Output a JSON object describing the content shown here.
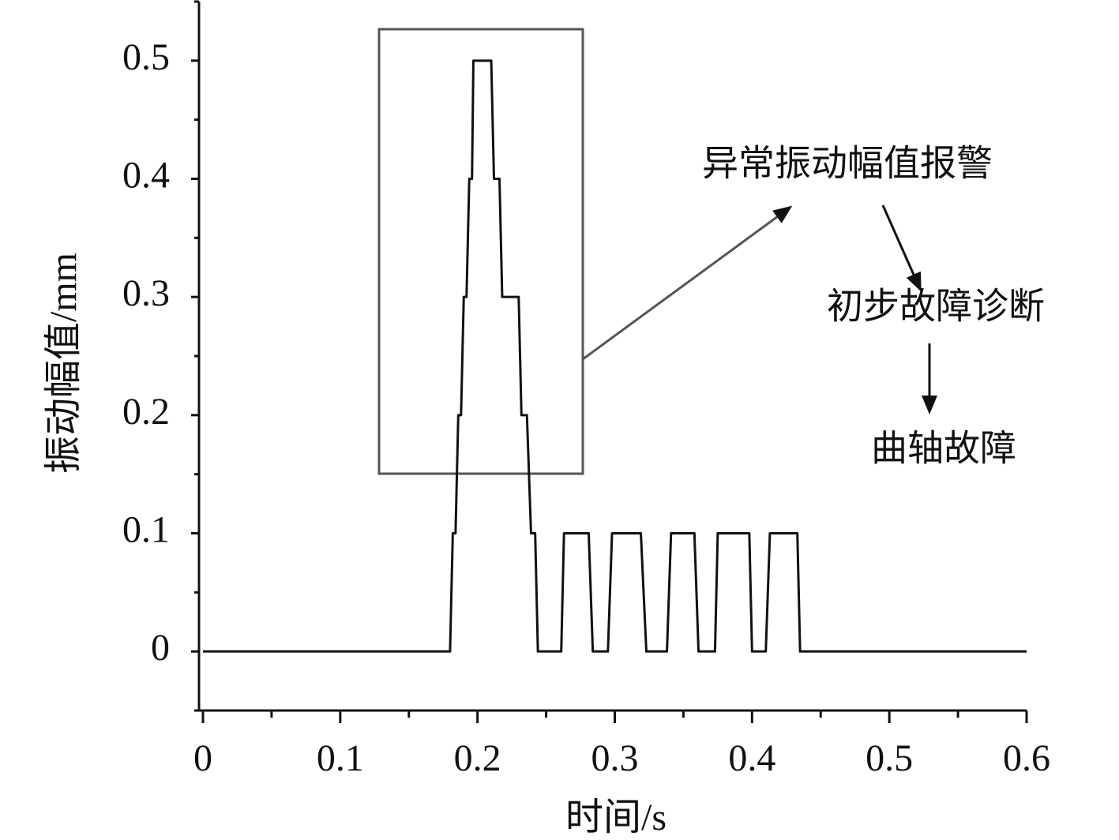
{
  "chart_data": {
    "type": "line",
    "x_label": "时间/s",
    "y_label": "振动幅值/mm",
    "x": [
      0,
      0.18,
      0.182,
      0.184,
      0.186,
      0.188,
      0.19,
      0.192,
      0.194,
      0.196,
      0.197,
      0.21,
      0.212,
      0.216,
      0.218,
      0.23,
      0.232,
      0.236,
      0.239,
      0.242,
      0.244,
      0.261,
      0.263,
      0.281,
      0.284,
      0.295,
      0.298,
      0.319,
      0.323,
      0.338,
      0.341,
      0.358,
      0.361,
      0.373,
      0.375,
      0.398,
      0.4,
      0.41,
      0.413,
      0.433,
      0.435,
      0.6
    ],
    "series": [
      {
        "color": "#111111",
        "values": [
          0,
          0,
          0.1,
          0.1,
          0.2,
          0.2,
          0.3,
          0.3,
          0.4,
          0.4,
          0.5,
          0.5,
          0.4,
          0.4,
          0.3,
          0.3,
          0.2,
          0.2,
          0.1,
          0.1,
          0,
          0,
          0.1,
          0.1,
          0,
          0,
          0.1,
          0.1,
          0,
          0,
          0.1,
          0.1,
          0,
          0,
          0.1,
          0.1,
          0,
          0,
          0.1,
          0.1,
          0,
          0
        ]
      }
    ],
    "xlim": [
      0,
      0.6
    ],
    "xticks": [
      0,
      0.1,
      0.2,
      0.3,
      0.4,
      0.5,
      0.6
    ],
    "ylim": [
      -0.05,
      0.55
    ],
    "yticks": [
      0,
      0.1,
      0.2,
      0.3,
      0.4,
      0.5
    ],
    "annotations": [
      "异常振动幅值报警",
      "初步故障诊断",
      "曲轴故障"
    ]
  }
}
